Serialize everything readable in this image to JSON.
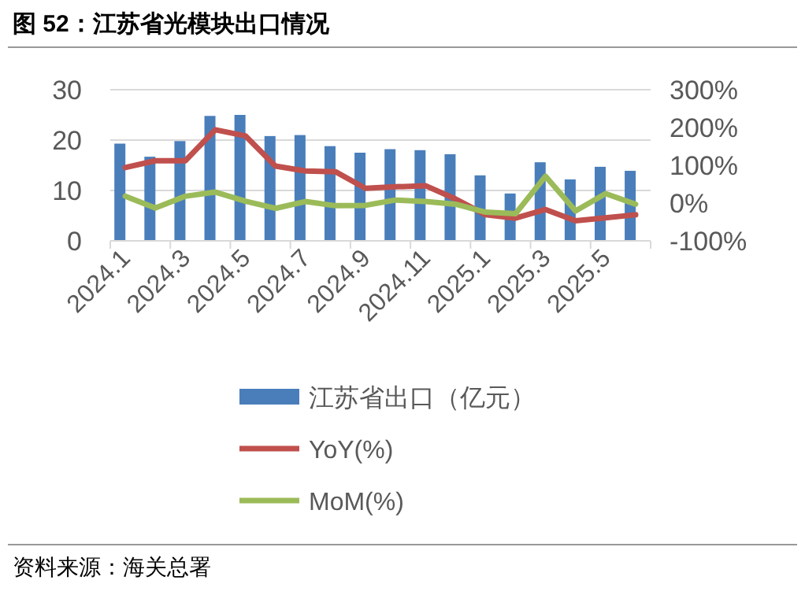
{
  "chart_data": {
    "type": "bar",
    "title": "图 52：江苏省光模块出口情况",
    "categories": [
      "2024.1",
      null,
      "2024.3",
      null,
      "2024.5",
      null,
      "2024.7",
      null,
      "2024.9",
      null,
      "2024.11",
      null,
      "2025.1",
      null,
      "2025.3",
      null,
      "2025.5",
      null
    ],
    "series": [
      {
        "name": "江苏省出口（亿元）",
        "color": "#4a7ebb",
        "values": [
          19.3,
          16.7,
          19.8,
          24.8,
          25.0,
          20.8,
          21.0,
          18.8,
          17.5,
          18.2,
          18.0,
          17.2,
          13.0,
          9.4,
          15.6,
          12.2,
          14.7,
          13.9
        ]
      },
      {
        "name": "YoY(%)",
        "type": "line",
        "axis": "y2",
        "color": "#c0504d",
        "values": [
          94,
          112,
          112,
          194,
          178,
          98,
          85,
          83,
          39,
          43,
          46,
          11,
          -31,
          -40,
          -17,
          -47,
          -39,
          -31
        ]
      },
      {
        "name": "MoM(%)",
        "type": "line",
        "axis": "y2",
        "color": "#9bbb59",
        "values": [
          18,
          -13,
          18,
          29,
          5,
          -14,
          4,
          -7,
          -6,
          8,
          4,
          -3,
          -24,
          -28,
          71,
          -21,
          25,
          -3
        ]
      }
    ],
    "ylim": [
      0,
      30
    ],
    "yticks": [
      0,
      10,
      20,
      30
    ],
    "y2lim": [
      -100,
      300
    ],
    "y2ticks": [
      {
        "value": 300,
        "label": "300%"
      },
      {
        "value": 200,
        "label": "200%"
      },
      {
        "value": 100,
        "label": "100%"
      },
      {
        "value": 0,
        "label": "0%"
      },
      {
        "value": -100,
        "label": "-100%"
      }
    ],
    "grid": "y",
    "legend": "bottom",
    "annotations": [
      "资料来源：海关总署"
    ]
  }
}
